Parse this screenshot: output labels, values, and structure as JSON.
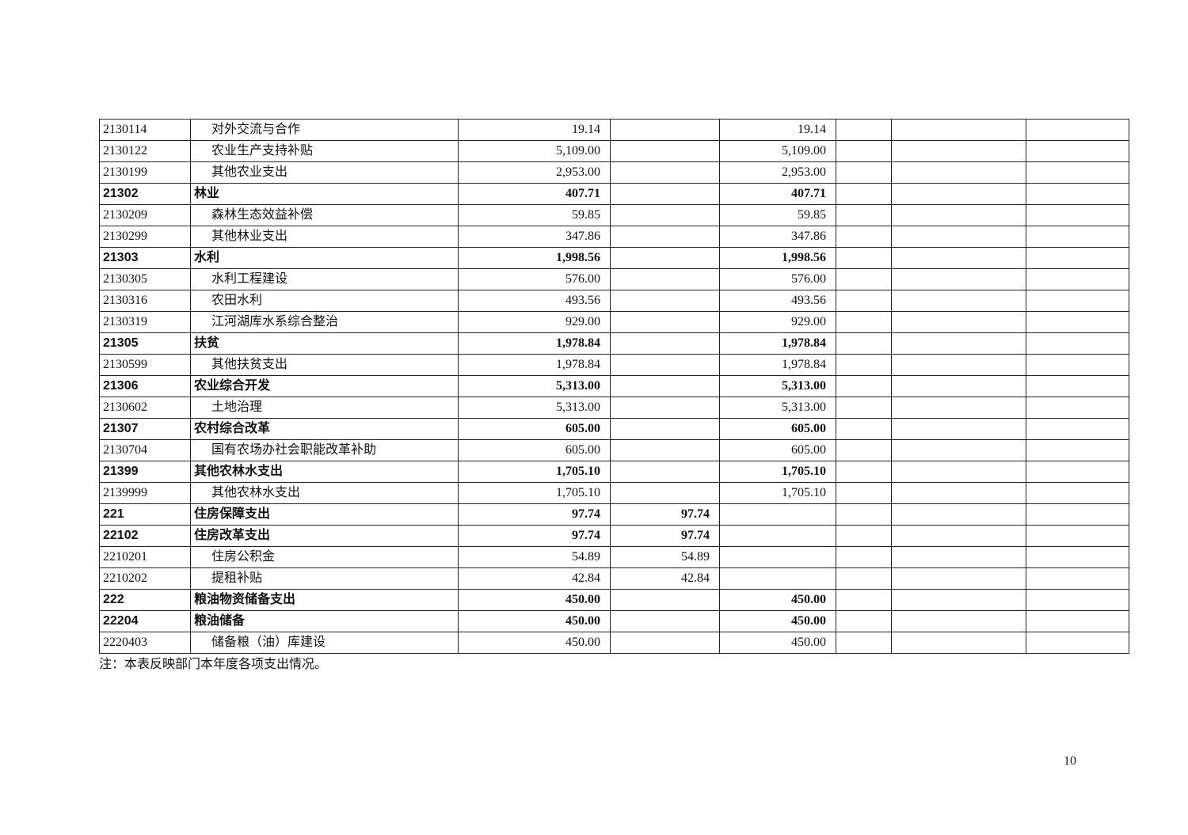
{
  "table": {
    "rows": [
      {
        "code": "2130114",
        "name": "对外交流与合作",
        "total": "19.14",
        "basic": "",
        "project": "19.14",
        "bold": false
      },
      {
        "code": "2130122",
        "name": "农业生产支持补贴",
        "total": "5,109.00",
        "basic": "",
        "project": "5,109.00",
        "bold": false
      },
      {
        "code": "2130199",
        "name": "其他农业支出",
        "total": "2,953.00",
        "basic": "",
        "project": "2,953.00",
        "bold": false
      },
      {
        "code": "21302",
        "name": "林业",
        "total": "407.71",
        "basic": "",
        "project": "407.71",
        "bold": true
      },
      {
        "code": "2130209",
        "name": "森林生态效益补偿",
        "total": "59.85",
        "basic": "",
        "project": "59.85",
        "bold": false
      },
      {
        "code": "2130299",
        "name": "其他林业支出",
        "total": "347.86",
        "basic": "",
        "project": "347.86",
        "bold": false
      },
      {
        "code": "21303",
        "name": "水利",
        "total": "1,998.56",
        "basic": "",
        "project": "1,998.56",
        "bold": true
      },
      {
        "code": "2130305",
        "name": "水利工程建设",
        "total": "576.00",
        "basic": "",
        "project": "576.00",
        "bold": false
      },
      {
        "code": "2130316",
        "name": "农田水利",
        "total": "493.56",
        "basic": "",
        "project": "493.56",
        "bold": false
      },
      {
        "code": "2130319",
        "name": "江河湖库水系综合整治",
        "total": "929.00",
        "basic": "",
        "project": "929.00",
        "bold": false
      },
      {
        "code": "21305",
        "name": "扶贫",
        "total": "1,978.84",
        "basic": "",
        "project": "1,978.84",
        "bold": true
      },
      {
        "code": "2130599",
        "name": "其他扶贫支出",
        "total": "1,978.84",
        "basic": "",
        "project": "1,978.84",
        "bold": false
      },
      {
        "code": "21306",
        "name": "农业综合开发",
        "total": "5,313.00",
        "basic": "",
        "project": "5,313.00",
        "bold": true
      },
      {
        "code": "2130602",
        "name": "土地治理",
        "total": "5,313.00",
        "basic": "",
        "project": "5,313.00",
        "bold": false
      },
      {
        "code": "21307",
        "name": "农村综合改革",
        "total": "605.00",
        "basic": "",
        "project": "605.00",
        "bold": true
      },
      {
        "code": "2130704",
        "name": "国有农场办社会职能改革补助",
        "total": "605.00",
        "basic": "",
        "project": "605.00",
        "bold": false
      },
      {
        "code": "21399",
        "name": "其他农林水支出",
        "total": "1,705.10",
        "basic": "",
        "project": "1,705.10",
        "bold": true
      },
      {
        "code": "2139999",
        "name": "其他农林水支出",
        "total": "1,705.10",
        "basic": "",
        "project": "1,705.10",
        "bold": false
      },
      {
        "code": "221",
        "name": "住房保障支出",
        "total": "97.74",
        "basic": "97.74",
        "project": "",
        "bold": true
      },
      {
        "code": "22102",
        "name": "住房改革支出",
        "total": "97.74",
        "basic": "97.74",
        "project": "",
        "bold": true
      },
      {
        "code": "2210201",
        "name": "住房公积金",
        "total": "54.89",
        "basic": "54.89",
        "project": "",
        "bold": false
      },
      {
        "code": "2210202",
        "name": "提租补贴",
        "total": "42.84",
        "basic": "42.84",
        "project": "",
        "bold": false
      },
      {
        "code": "222",
        "name": "粮油物资储备支出",
        "total": "450.00",
        "basic": "",
        "project": "450.00",
        "bold": true
      },
      {
        "code": "22204",
        "name": "粮油储备",
        "total": "450.00",
        "basic": "",
        "project": "450.00",
        "bold": true
      },
      {
        "code": "2220403",
        "name": "储备粮（油）库建设",
        "total": "450.00",
        "basic": "",
        "project": "450.00",
        "bold": false
      }
    ]
  },
  "note": "注：本表反映部门本年度各项支出情况。",
  "page_number": "10"
}
